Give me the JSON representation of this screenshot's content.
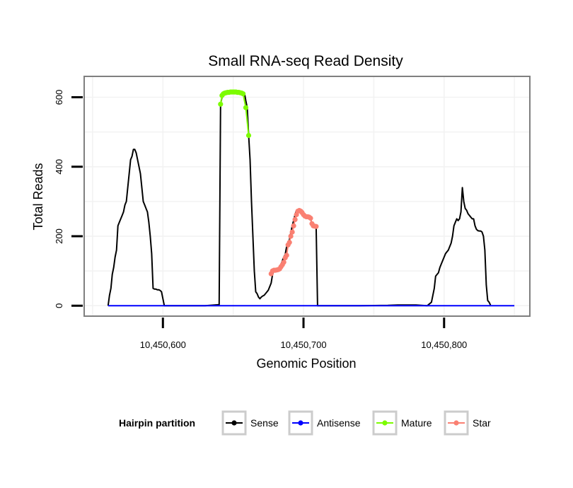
{
  "chart_data": {
    "type": "line",
    "title": "Small RNA-seq Read Density",
    "xlabel": "Genomic Position",
    "ylabel": "Total Reads",
    "xlim": [
      10450544,
      10450861
    ],
    "ylim": [
      -30,
      660
    ],
    "x_ticks": [
      10450600,
      10450700,
      10450800
    ],
    "x_tick_labels": [
      "10,450,600",
      "10,450,700",
      "10,450,800"
    ],
    "y_ticks": [
      0,
      200,
      400,
      600
    ],
    "y_tick_labels": [
      "0",
      "200",
      "400",
      "600"
    ],
    "grid": true,
    "legend": {
      "title": "Hairpin partition",
      "placement": "bottom",
      "entries": [
        "Sense",
        "Antisense",
        "Mature",
        "Star"
      ]
    },
    "colors": {
      "sense": "#000000",
      "antisense": "#0000ff",
      "mature": "#7cfc00",
      "star": "#fa8072",
      "panel_border": "#7f7f7f",
      "grid": "#f2f2f2"
    },
    "series": [
      {
        "name": "Sense",
        "key": "sense",
        "points": [
          [
            10450561,
            0
          ],
          [
            10450562,
            30
          ],
          [
            10450563,
            50
          ],
          [
            10450564,
            90
          ],
          [
            10450565,
            110
          ],
          [
            10450566,
            140
          ],
          [
            10450567,
            160
          ],
          [
            10450568,
            230
          ],
          [
            10450569,
            240
          ],
          [
            10450570,
            250
          ],
          [
            10450571,
            260
          ],
          [
            10450572,
            270
          ],
          [
            10450573,
            290
          ],
          [
            10450574,
            300
          ],
          [
            10450575,
            340
          ],
          [
            10450576,
            380
          ],
          [
            10450577,
            420
          ],
          [
            10450578,
            430
          ],
          [
            10450579,
            450
          ],
          [
            10450580,
            450
          ],
          [
            10450581,
            440
          ],
          [
            10450582,
            420
          ],
          [
            10450583,
            400
          ],
          [
            10450584,
            380
          ],
          [
            10450585,
            340
          ],
          [
            10450586,
            300
          ],
          [
            10450587,
            290
          ],
          [
            10450588,
            280
          ],
          [
            10450589,
            270
          ],
          [
            10450590,
            240
          ],
          [
            10450591,
            200
          ],
          [
            10450592,
            150
          ],
          [
            10450593,
            50
          ],
          [
            10450594,
            48
          ],
          [
            10450595,
            48
          ],
          [
            10450596,
            46
          ],
          [
            10450597,
            46
          ],
          [
            10450598,
            44
          ],
          [
            10450599,
            40
          ],
          [
            10450600,
            20
          ],
          [
            10450601,
            0
          ],
          [
            10450602,
            0
          ],
          [
            10450606,
            0
          ],
          [
            10450610,
            0
          ],
          [
            10450620,
            0
          ],
          [
            10450630,
            0
          ],
          [
            10450640,
            3
          ],
          [
            10450641,
            580
          ],
          [
            10450642,
            600
          ],
          [
            10450643,
            610
          ],
          [
            10450644,
            613
          ],
          [
            10450650,
            615
          ],
          [
            10450655,
            615
          ],
          [
            10450658,
            612
          ],
          [
            10450659,
            590
          ],
          [
            10450660,
            570
          ],
          [
            10450661,
            490
          ],
          [
            10450662,
            420
          ],
          [
            10450663,
            300
          ],
          [
            10450664,
            200
          ],
          [
            10450665,
            100
          ],
          [
            10450666,
            40
          ],
          [
            10450667,
            35
          ],
          [
            10450668,
            25
          ],
          [
            10450669,
            20
          ],
          [
            10450670,
            25
          ],
          [
            10450671,
            28
          ],
          [
            10450672,
            30
          ],
          [
            10450673,
            35
          ],
          [
            10450674,
            40
          ],
          [
            10450675,
            45
          ],
          [
            10450676,
            55
          ],
          [
            10450677,
            65
          ],
          [
            10450678,
            90
          ],
          [
            10450679,
            100
          ],
          [
            10450680,
            102
          ],
          [
            10450681,
            104
          ],
          [
            10450682,
            105
          ],
          [
            10450683,
            110
          ],
          [
            10450684,
            118
          ],
          [
            10450685,
            130
          ],
          [
            10450686,
            140
          ],
          [
            10450687,
            148
          ],
          [
            10450688,
            170
          ],
          [
            10450689,
            180
          ],
          [
            10450690,
            190
          ],
          [
            10450691,
            210
          ],
          [
            10450692,
            230
          ],
          [
            10450693,
            245
          ],
          [
            10450694,
            262
          ],
          [
            10450695,
            275
          ],
          [
            10450696,
            275
          ],
          [
            10450697,
            274
          ],
          [
            10450698,
            270
          ],
          [
            10450699,
            266
          ],
          [
            10450700,
            262
          ],
          [
            10450701,
            258
          ],
          [
            10450702,
            256
          ],
          [
            10450703,
            256
          ],
          [
            10450704,
            255
          ],
          [
            10450705,
            250
          ],
          [
            10450706,
            236
          ],
          [
            10450707,
            230
          ],
          [
            10450708,
            230
          ],
          [
            10450709,
            228
          ],
          [
            10450710,
            0
          ],
          [
            10450720,
            0
          ],
          [
            10450740,
            0
          ],
          [
            10450760,
            1
          ],
          [
            10450767,
            2
          ],
          [
            10450780,
            2
          ],
          [
            10450788,
            0
          ],
          [
            10450791,
            10
          ],
          [
            10450793,
            50
          ],
          [
            10450794,
            85
          ],
          [
            10450795,
            90
          ],
          [
            10450796,
            95
          ],
          [
            10450797,
            110
          ],
          [
            10450798,
            120
          ],
          [
            10450799,
            130
          ],
          [
            10450800,
            140
          ],
          [
            10450801,
            150
          ],
          [
            10450802,
            155
          ],
          [
            10450803,
            160
          ],
          [
            10450804,
            170
          ],
          [
            10450805,
            180
          ],
          [
            10450806,
            200
          ],
          [
            10450807,
            230
          ],
          [
            10450808,
            240
          ],
          [
            10450809,
            250
          ],
          [
            10450810,
            245
          ],
          [
            10450811,
            250
          ],
          [
            10450812,
            270
          ],
          [
            10450813,
            340
          ],
          [
            10450814,
            300
          ],
          [
            10450815,
            280
          ],
          [
            10450816,
            275
          ],
          [
            10450817,
            265
          ],
          [
            10450818,
            260
          ],
          [
            10450819,
            255
          ],
          [
            10450820,
            250
          ],
          [
            10450821,
            250
          ],
          [
            10450822,
            230
          ],
          [
            10450823,
            220
          ],
          [
            10450824,
            216
          ],
          [
            10450825,
            215
          ],
          [
            10450826,
            215
          ],
          [
            10450827,
            212
          ],
          [
            10450828,
            200
          ],
          [
            10450829,
            160
          ],
          [
            10450830,
            60
          ],
          [
            10450831,
            15
          ],
          [
            10450832,
            10
          ],
          [
            10450833,
            2
          ]
        ]
      },
      {
        "name": "Antisense",
        "key": "antisense",
        "points": [
          [
            10450561,
            0
          ],
          [
            10450850,
            0
          ]
        ]
      },
      {
        "name": "Mature",
        "key": "mature",
        "points": [
          [
            10450641,
            580
          ],
          [
            10450642,
            605
          ],
          [
            10450643,
            610
          ],
          [
            10450644,
            612
          ],
          [
            10450645,
            613
          ],
          [
            10450646,
            614
          ],
          [
            10450647,
            614
          ],
          [
            10450648,
            615
          ],
          [
            10450649,
            615
          ],
          [
            10450650,
            615
          ],
          [
            10450651,
            615
          ],
          [
            10450652,
            615
          ],
          [
            10450653,
            614
          ],
          [
            10450654,
            614
          ],
          [
            10450655,
            613
          ],
          [
            10450656,
            612
          ],
          [
            10450657,
            610
          ],
          [
            10450659,
            570
          ],
          [
            10450661,
            490
          ]
        ]
      },
      {
        "name": "Star",
        "key": "star",
        "points": [
          [
            10450677,
            92
          ],
          [
            10450678,
            100
          ],
          [
            10450679,
            102
          ],
          [
            10450680,
            102
          ],
          [
            10450681,
            103
          ],
          [
            10450682,
            104
          ],
          [
            10450683,
            106
          ],
          [
            10450684,
            112
          ],
          [
            10450685,
            118
          ],
          [
            10450686,
            125
          ],
          [
            10450687,
            138
          ],
          [
            10450688,
            145
          ],
          [
            10450689,
            175
          ],
          [
            10450690,
            182
          ],
          [
            10450691,
            200
          ],
          [
            10450692,
            212
          ],
          [
            10450693,
            230
          ],
          [
            10450694,
            248
          ],
          [
            10450695,
            262
          ],
          [
            10450696,
            272
          ],
          [
            10450697,
            274
          ],
          [
            10450698,
            272
          ],
          [
            10450699,
            268
          ],
          [
            10450700,
            262
          ],
          [
            10450701,
            258
          ],
          [
            10450702,
            256
          ],
          [
            10450703,
            256
          ],
          [
            10450704,
            255
          ],
          [
            10450705,
            252
          ],
          [
            10450706,
            236
          ],
          [
            10450707,
            230
          ],
          [
            10450708,
            229
          ],
          [
            10450709,
            228
          ]
        ]
      }
    ]
  }
}
